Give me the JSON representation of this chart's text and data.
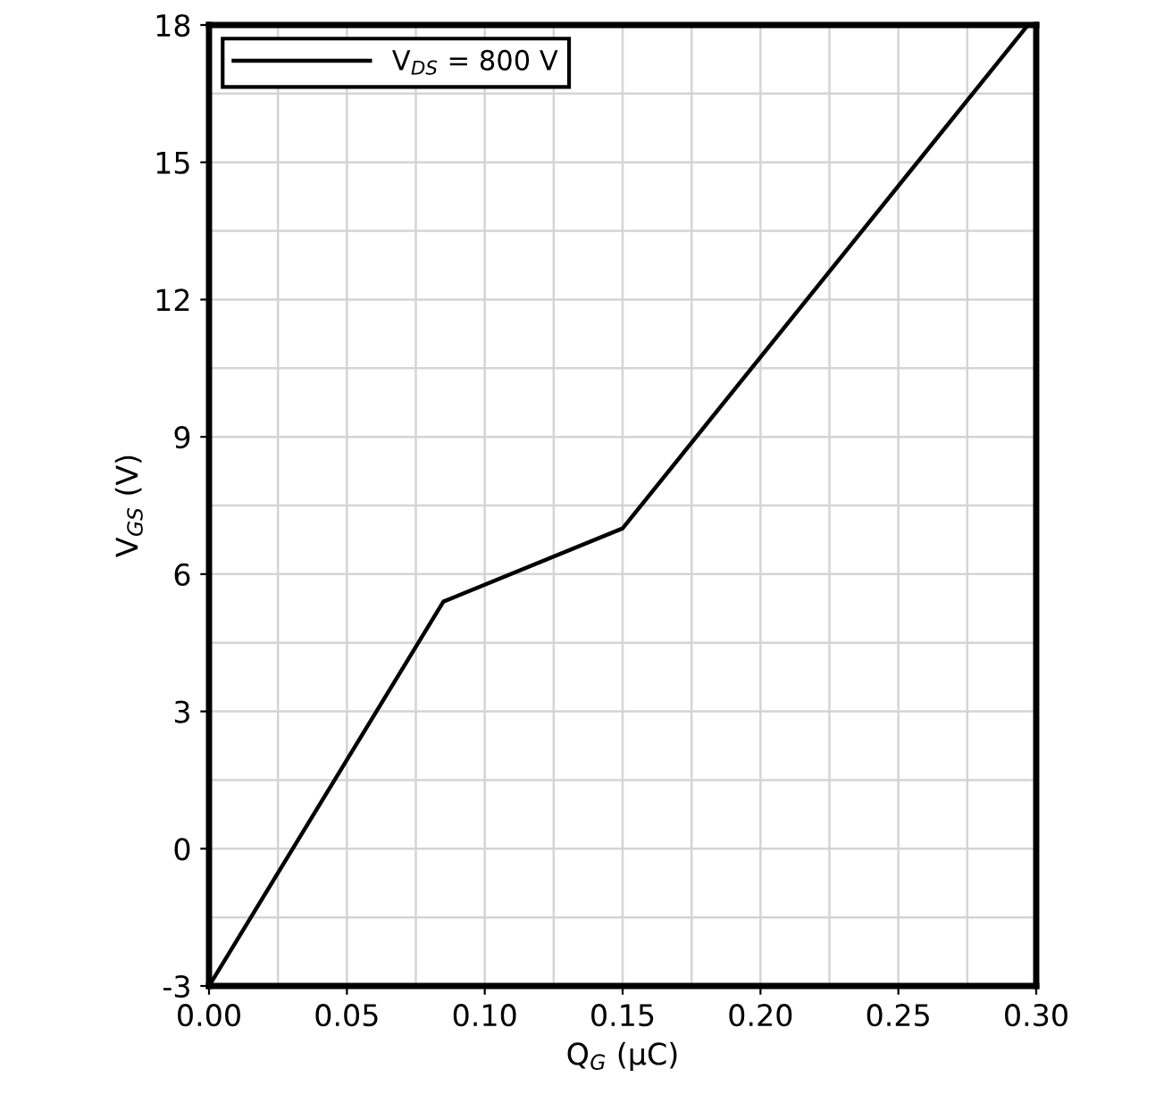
{
  "chart_data": {
    "type": "line",
    "xlabel": "Q$_{G}$ (µC)",
    "ylabel": "V$_{GS}$ (V)",
    "x": [
      0.0,
      0.085,
      0.15,
      0.297
    ],
    "series": [
      {
        "name": "V$_{DS}$ = 800 V",
        "color": "#000000",
        "values": [
          -3,
          5.4,
          7.0,
          18
        ]
      }
    ],
    "xlim": [
      0,
      0.3
    ],
    "ylim": [
      -3,
      18
    ],
    "xticks": [
      {
        "value": 0,
        "label": "0.00"
      },
      {
        "value": 0.05,
        "label": "0.05"
      },
      {
        "value": 0.1,
        "label": "0.10"
      },
      {
        "value": 0.15,
        "label": "0.15"
      },
      {
        "value": 0.2,
        "label": "0.20"
      },
      {
        "value": 0.25,
        "label": "0.25"
      },
      {
        "value": 0.3,
        "label": "0.30"
      }
    ],
    "yticks": [
      -3,
      0,
      3,
      6,
      9,
      12,
      15,
      18
    ],
    "grid": true,
    "legend": "top left",
    "marker": "none",
    "line_style": "solid"
  }
}
